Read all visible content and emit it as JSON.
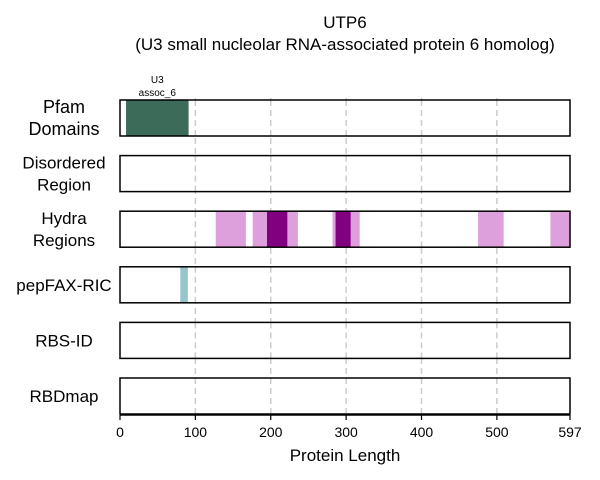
{
  "chart_data": {
    "type": "bar",
    "title": "UTP6",
    "subtitle": "(U3 small nucleolar RNA-associated protein 6 homolog)",
    "xlabel": "Protein Length",
    "xlim": [
      0,
      597
    ],
    "xticks": [
      0,
      100,
      200,
      300,
      400,
      500,
      597
    ],
    "grid": "dashed vertical at 100-unit intervals",
    "colors": {
      "pfam": "#3d6b5a",
      "hydra_light": "#dda0dd",
      "hydra_dark": "#800080",
      "pepfax": "#96c5cc",
      "grid": "#cccccc",
      "frame": "#000000"
    },
    "rows": [
      {
        "label_lines": [
          "Pfam",
          "Domains"
        ],
        "segments": [
          {
            "start": 8,
            "end": 91,
            "color": "#3d6b5a",
            "label_lines": [
              "U3",
              "assoc_6"
            ]
          }
        ]
      },
      {
        "label_lines": [
          "Disordered",
          "Region"
        ],
        "segments": []
      },
      {
        "label_lines": [
          "Hydra",
          "Regions"
        ],
        "segments": [
          {
            "start": 127,
            "end": 167,
            "color": "#dda0dd"
          },
          {
            "start": 176,
            "end": 236,
            "color": "#dda0dd"
          },
          {
            "start": 195,
            "end": 222,
            "color": "#800080"
          },
          {
            "start": 282,
            "end": 318,
            "color": "#dda0dd"
          },
          {
            "start": 286,
            "end": 306,
            "color": "#800080"
          },
          {
            "start": 475,
            "end": 509,
            "color": "#dda0dd"
          },
          {
            "start": 571,
            "end": 597,
            "color": "#dda0dd"
          }
        ]
      },
      {
        "label_lines": [
          "pepFAX-RIC"
        ],
        "segments": [
          {
            "start": 80,
            "end": 90,
            "color": "#96c5cc"
          }
        ]
      },
      {
        "label_lines": [
          "RBS-ID"
        ],
        "segments": []
      },
      {
        "label_lines": [
          "RBDmap"
        ],
        "segments": []
      }
    ]
  }
}
